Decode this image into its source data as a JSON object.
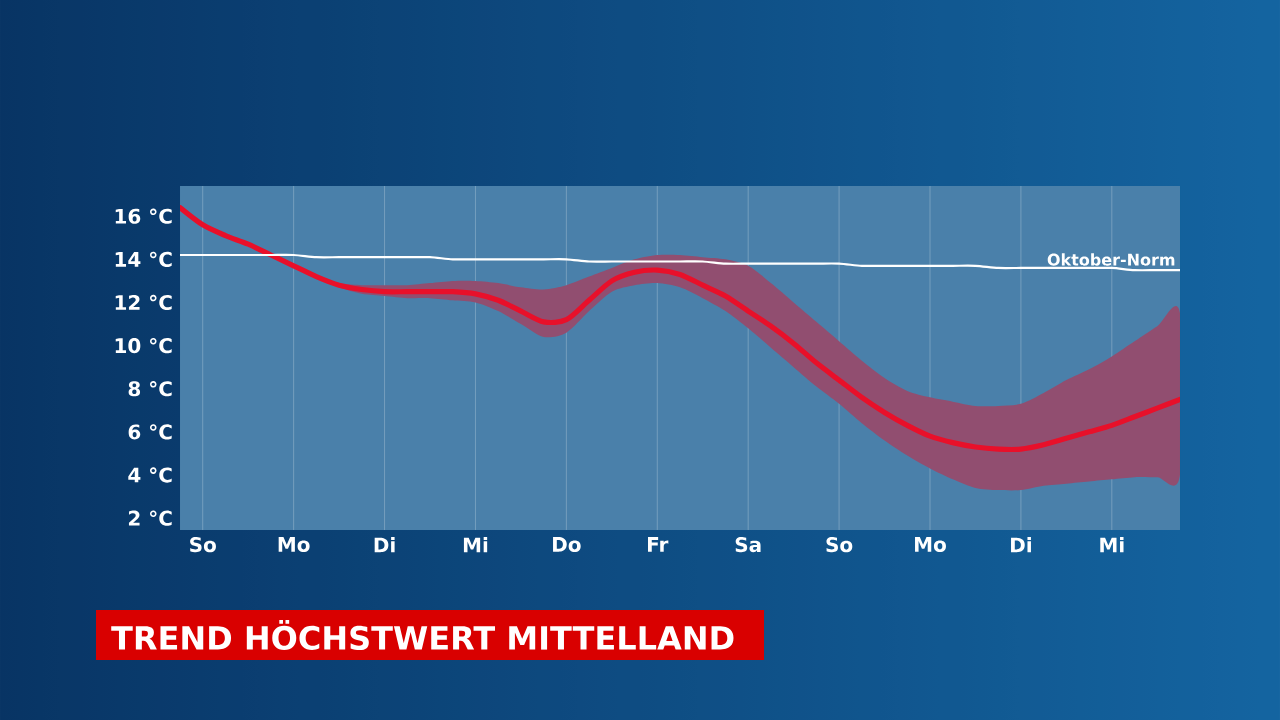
{
  "chart_data": {
    "type": "line",
    "title": "TREND HÖCHSTWERT MITTELLAND",
    "categories": [
      null,
      "So",
      null,
      null,
      null,
      "Mo",
      null,
      null,
      null,
      "Di",
      null,
      null,
      null,
      "Mi",
      null,
      null,
      null,
      "Do",
      null,
      null,
      null,
      "Fr",
      null,
      null,
      null,
      "Sa",
      null,
      null,
      null,
      "So",
      null,
      null,
      null,
      "Mo",
      null,
      null,
      null,
      "Di",
      null,
      null,
      null,
      "Mi",
      null,
      null,
      null
    ],
    "ylim": [
      1.45,
      17.4
    ],
    "yticks": [
      {
        "value": 2,
        "label": "2 °C"
      },
      {
        "value": 4,
        "label": "4 °C"
      },
      {
        "value": 6,
        "label": "6 °C"
      },
      {
        "value": 8,
        "label": "8 °C"
      },
      {
        "value": 10,
        "label": "10 °C"
      },
      {
        "value": 12,
        "label": "12 °C"
      },
      {
        "value": 14,
        "label": "14 °C"
      },
      {
        "value": 16,
        "label": "16 °C"
      }
    ],
    "grid": "x",
    "legend": false,
    "marker": "none",
    "line_style": "solid",
    "series": [
      {
        "color": "#e8102a",
        "values": [
          16.4,
          15.6,
          15.1,
          14.7,
          14.2,
          13.7,
          13.2,
          12.8,
          12.6,
          12.5,
          12.5,
          12.5,
          12.5,
          12.4,
          12.1,
          11.6,
          11.1,
          11.2,
          12.1,
          13.0,
          13.4,
          13.5,
          13.3,
          12.8,
          12.3,
          11.6,
          10.9,
          10.1,
          9.2,
          8.4,
          7.6,
          6.9,
          6.3,
          5.8,
          5.5,
          5.3,
          5.2,
          5.2,
          5.4,
          5.7,
          6.0,
          6.3,
          6.7,
          7.1,
          7.5
        ],
        "lower": [
          16.4,
          15.6,
          15.1,
          14.7,
          14.2,
          13.7,
          13.2,
          12.7,
          12.4,
          12.3,
          12.2,
          12.2,
          12.1,
          12.0,
          11.6,
          11.0,
          10.4,
          10.6,
          11.6,
          12.5,
          12.8,
          12.9,
          12.7,
          12.2,
          11.6,
          10.8,
          9.9,
          9.0,
          8.1,
          7.3,
          6.4,
          5.6,
          4.9,
          4.3,
          3.8,
          3.4,
          3.3,
          3.3,
          3.5,
          3.6,
          3.7,
          3.8,
          3.9,
          3.9,
          4.0
        ],
        "upper": [
          16.4,
          15.6,
          15.1,
          14.7,
          14.2,
          13.7,
          13.2,
          12.9,
          12.8,
          12.8,
          12.8,
          12.9,
          13.0,
          13.0,
          12.9,
          12.7,
          12.6,
          12.8,
          13.2,
          13.6,
          14.0,
          14.2,
          14.2,
          14.1,
          14.0,
          13.7,
          12.9,
          12.0,
          11.1,
          10.2,
          9.3,
          8.5,
          7.9,
          7.6,
          7.4,
          7.2,
          7.2,
          7.3,
          7.8,
          8.4,
          8.9,
          9.5,
          10.2,
          10.9,
          11.5
        ]
      },
      {
        "name": "Oktober-Norm",
        "color": "#ffffff",
        "values": [
          14.2,
          14.2,
          14.2,
          14.2,
          14.2,
          14.2,
          14.1,
          14.1,
          14.1,
          14.1,
          14.1,
          14.1,
          14.0,
          14.0,
          14.0,
          14.0,
          14.0,
          14.0,
          13.9,
          13.9,
          13.9,
          13.9,
          13.9,
          13.9,
          13.8,
          13.8,
          13.8,
          13.8,
          13.8,
          13.8,
          13.7,
          13.7,
          13.7,
          13.7,
          13.7,
          13.7,
          13.6,
          13.6,
          13.6,
          13.6,
          13.6,
          13.6,
          13.5,
          13.5,
          13.5
        ]
      }
    ]
  }
}
